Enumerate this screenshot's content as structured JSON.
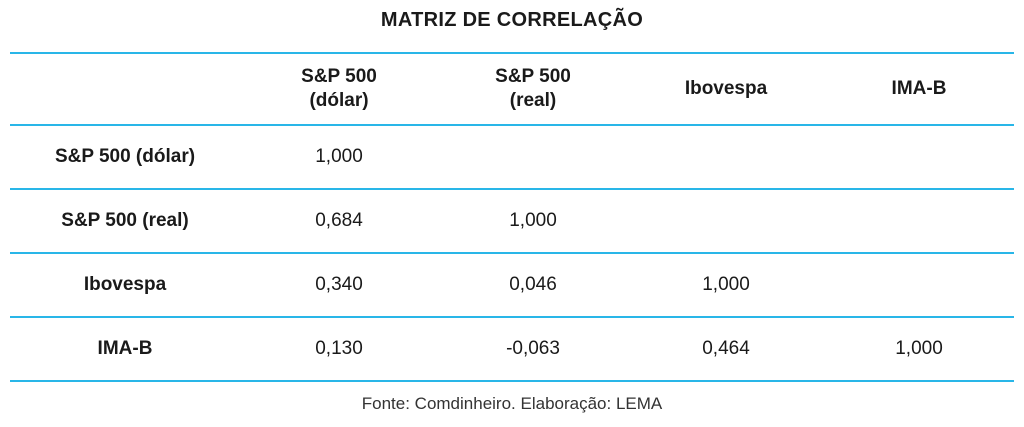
{
  "title": "MATRIZ DE CORRELAÇÃO",
  "source": "Fonte: Comdinheiro. Elaboração: LEMA",
  "colors": {
    "rule": "#29b6e8",
    "text": "#1a1a1a"
  },
  "columns": [
    "",
    "S&P 500\n(dólar)",
    "S&P 500\n(real)",
    "Ibovespa",
    "IMA-B"
  ],
  "rows": [
    {
      "label": "S&P 500 (dólar)",
      "cells": [
        "1,000",
        "",
        "",
        ""
      ]
    },
    {
      "label": "S&P 500 (real)",
      "cells": [
        "0,684",
        "1,000",
        "",
        ""
      ]
    },
    {
      "label": "Ibovespa",
      "cells": [
        "0,340",
        "0,046",
        "1,000",
        ""
      ]
    },
    {
      "label": "IMA-B",
      "cells": [
        "0,130",
        "-0,063",
        "0,464",
        "1,000"
      ]
    }
  ],
  "chart_data": {
    "type": "table",
    "title": "MATRIZ DE CORRELAÇÃO",
    "variables": [
      "S&P 500 (dólar)",
      "S&P 500 (real)",
      "Ibovespa",
      "IMA-B"
    ],
    "matrix": [
      [
        1.0,
        null,
        null,
        null
      ],
      [
        0.684,
        1.0,
        null,
        null
      ],
      [
        0.34,
        0.046,
        1.0,
        null
      ],
      [
        0.13,
        -0.063,
        0.464,
        1.0
      ]
    ]
  }
}
